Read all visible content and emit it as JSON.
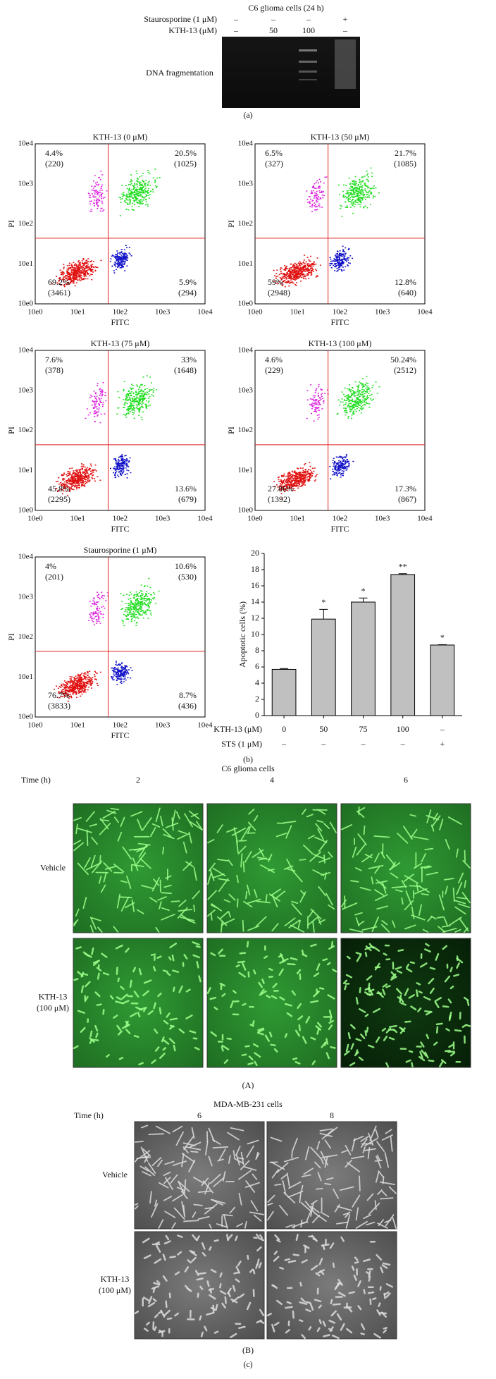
{
  "panel_a": {
    "title": "C6 glioma cells (24 h)",
    "row_labels": [
      "Staurosporine (1 μM)",
      "KTH-13 (μM)"
    ],
    "lanes": [
      [
        "–",
        "–"
      ],
      [
        "–",
        "50"
      ],
      [
        "–",
        "100"
      ],
      [
        "+",
        "–"
      ]
    ],
    "band_label": "DNA fragmentation",
    "caption": "(a)"
  },
  "flow_axes": {
    "ticks": [
      "10e0",
      "10e1",
      "10e2",
      "10e3",
      "10e4"
    ],
    "x_label": "FITC",
    "y_label": "PI"
  },
  "flow_plots": [
    {
      "title": "KTH-13 (0 μM)",
      "quadrants": [
        [
          "4.4%",
          "(220)"
        ],
        [
          "20.5%",
          "(1025)"
        ],
        [
          "69.2%",
          "(3461)"
        ],
        [
          "5.9%",
          "(294)"
        ]
      ]
    },
    {
      "title": "KTH-13 (50 μM)",
      "quadrants": [
        [
          "6.5%",
          "(327)"
        ],
        [
          "21.7%",
          "(1085)"
        ],
        [
          "59%",
          "(2948)"
        ],
        [
          "12.8%",
          "(640)"
        ]
      ]
    },
    {
      "title": "KTH-13 (75 μM)",
      "quadrants": [
        [
          "7.6%",
          "(378)"
        ],
        [
          "33%",
          "(1648)"
        ],
        [
          "45.8%",
          "(2295)"
        ],
        [
          "13.6%",
          "(679)"
        ]
      ]
    },
    {
      "title": "KTH-13 (100 μM)",
      "quadrants": [
        [
          "4.6%",
          "(229)"
        ],
        [
          "50.24%",
          "(2512)"
        ],
        [
          "27.86%",
          "(1392)"
        ],
        [
          "17.3%",
          "(867)"
        ]
      ]
    },
    {
      "title": "Staurosporine (1 μM)",
      "quadrants": [
        [
          "4%",
          "(201)"
        ],
        [
          "10.6%",
          "(530)"
        ],
        [
          "76.7%",
          "(3833)"
        ],
        [
          "8.7%",
          "(436)"
        ]
      ]
    }
  ],
  "chart_data": {
    "type": "bar",
    "y_label": "Apoptotic cells (%)",
    "row_labels": [
      "KTH-13 (μM)",
      "STS (1 μM)"
    ],
    "categories": [
      "0",
      "50",
      "75",
      "100",
      "–"
    ],
    "sts_row": [
      "–",
      "–",
      "–",
      "–",
      "+"
    ],
    "values": [
      5.7,
      11.9,
      14.0,
      17.4,
      8.7
    ],
    "errors": [
      0.1,
      1.2,
      0.5,
      0.1,
      0.05
    ],
    "annotations": [
      null,
      "*",
      "*",
      "**",
      "*"
    ],
    "color": "#c0c0c0",
    "ylim": [
      0,
      20
    ],
    "yticks": [
      0,
      2,
      4,
      6,
      8,
      10,
      12,
      14,
      16,
      18,
      20
    ],
    "caption": "(b)"
  },
  "panel_c": {
    "c6": {
      "title": "C6 glioma cells",
      "time_label": "Time (h)",
      "times": [
        "2",
        "4",
        "6"
      ],
      "rows": [
        "Vehicle",
        "KTH-13",
        "(100 μM)"
      ],
      "caption": "(A)"
    },
    "mda": {
      "title": "MDA-MB-231 cells",
      "time_label": "Time (h)",
      "times": [
        "6",
        "8"
      ],
      "rows": [
        "Vehicle",
        "KTH-13",
        "(100 μM)"
      ],
      "caption": "(B)"
    },
    "caption": "(c)"
  }
}
